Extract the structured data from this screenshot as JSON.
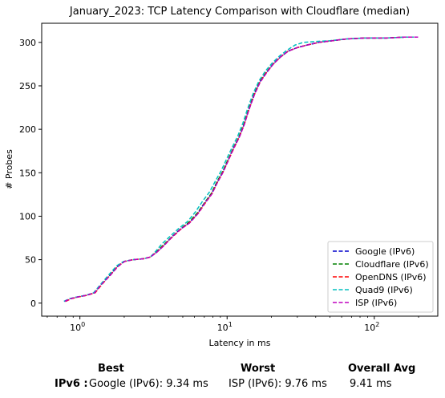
{
  "chart_data": {
    "type": "line",
    "title": "January_2023: TCP Latency Comparison with Cloudflare (median)",
    "xlabel": "Latency in ms",
    "ylabel": "# Probes",
    "xscale": "log",
    "xlim": [
      0.55,
      270
    ],
    "ylim": [
      -15,
      322
    ],
    "xticks": [
      1,
      10,
      100
    ],
    "xtick_labels": [
      "10^0",
      "10^1",
      "10^2"
    ],
    "yticks": [
      0,
      50,
      100,
      150,
      200,
      250,
      300
    ],
    "grid": false,
    "legend_position": "lower-right",
    "series": [
      {
        "name": "Google (IPv6)",
        "color": "#0000cc",
        "dash": "dashed",
        "points": [
          [
            0.78,
            2
          ],
          [
            0.85,
            5
          ],
          [
            0.95,
            7
          ],
          [
            1.1,
            9
          ],
          [
            1.25,
            12
          ],
          [
            1.4,
            22
          ],
          [
            1.6,
            32
          ],
          [
            1.8,
            42
          ],
          [
            2.0,
            48
          ],
          [
            2.3,
            50
          ],
          [
            2.7,
            51
          ],
          [
            3.0,
            53
          ],
          [
            3.3,
            58
          ],
          [
            3.7,
            66
          ],
          [
            4.2,
            76
          ],
          [
            4.8,
            85
          ],
          [
            5.5,
            92
          ],
          [
            6.3,
            103
          ],
          [
            7.0,
            115
          ],
          [
            7.8,
            125
          ],
          [
            8.5,
            138
          ],
          [
            9.3,
            150
          ],
          [
            10.2,
            165
          ],
          [
            11.0,
            178
          ],
          [
            12.0,
            190
          ],
          [
            13.0,
            205
          ],
          [
            14.0,
            222
          ],
          [
            15.3,
            240
          ],
          [
            16.7,
            255
          ],
          [
            18.5,
            265
          ],
          [
            20.5,
            275
          ],
          [
            23.0,
            283
          ],
          [
            26.0,
            290
          ],
          [
            30.0,
            294
          ],
          [
            35.0,
            297
          ],
          [
            42.0,
            300
          ],
          [
            52.0,
            302
          ],
          [
            65.0,
            304
          ],
          [
            85.0,
            305
          ],
          [
            120.0,
            305
          ],
          [
            160.0,
            306
          ],
          [
            185.0,
            306
          ]
        ]
      },
      {
        "name": "Cloudflare (IPv6)",
        "color": "#008000",
        "dash": "dashed",
        "points": [
          [
            0.79,
            2
          ],
          [
            0.86,
            5
          ],
          [
            0.96,
            7
          ],
          [
            1.1,
            9
          ],
          [
            1.26,
            12
          ],
          [
            1.41,
            22
          ],
          [
            1.62,
            33
          ],
          [
            1.82,
            43
          ],
          [
            2.0,
            48
          ],
          [
            2.3,
            50
          ],
          [
            2.7,
            51
          ],
          [
            3.0,
            53
          ],
          [
            3.3,
            59
          ],
          [
            3.7,
            67
          ],
          [
            4.2,
            76
          ],
          [
            4.8,
            85
          ],
          [
            5.5,
            93
          ],
          [
            6.3,
            104
          ],
          [
            7.0,
            115
          ],
          [
            7.8,
            126
          ],
          [
            8.5,
            139
          ],
          [
            9.3,
            151
          ],
          [
            10.2,
            166
          ],
          [
            11.0,
            178
          ],
          [
            12.0,
            191
          ],
          [
            13.0,
            206
          ],
          [
            14.0,
            223
          ],
          [
            15.3,
            241
          ],
          [
            16.7,
            255
          ],
          [
            18.5,
            266
          ],
          [
            20.5,
            275
          ],
          [
            23.0,
            283
          ],
          [
            26.0,
            290
          ],
          [
            30.0,
            294
          ],
          [
            35.0,
            297
          ],
          [
            42.0,
            300
          ],
          [
            52.0,
            302
          ],
          [
            65.0,
            304
          ],
          [
            85.0,
            305
          ],
          [
            120.0,
            305
          ],
          [
            160.0,
            306
          ],
          [
            185.0,
            306
          ]
        ]
      },
      {
        "name": "OpenDNS (IPv6)",
        "color": "#ff0000",
        "dash": "dashed",
        "points": [
          [
            0.8,
            2
          ],
          [
            0.87,
            5
          ],
          [
            0.97,
            7
          ],
          [
            1.12,
            9
          ],
          [
            1.27,
            12
          ],
          [
            1.42,
            22
          ],
          [
            1.62,
            33
          ],
          [
            1.82,
            43
          ],
          [
            2.02,
            48
          ],
          [
            2.3,
            50
          ],
          [
            2.7,
            51
          ],
          [
            3.0,
            53
          ],
          [
            3.35,
            59
          ],
          [
            3.75,
            67
          ],
          [
            4.25,
            76
          ],
          [
            4.85,
            85
          ],
          [
            5.6,
            93
          ],
          [
            6.4,
            104
          ],
          [
            7.1,
            115
          ],
          [
            7.9,
            126
          ],
          [
            8.6,
            139
          ],
          [
            9.4,
            151
          ],
          [
            10.3,
            166
          ],
          [
            11.1,
            178
          ],
          [
            12.1,
            191
          ],
          [
            13.1,
            206
          ],
          [
            14.1,
            223
          ],
          [
            15.4,
            241
          ],
          [
            16.8,
            255
          ],
          [
            18.6,
            266
          ],
          [
            20.6,
            275
          ],
          [
            23.0,
            283
          ],
          [
            26.0,
            290
          ],
          [
            30.0,
            294
          ],
          [
            35.0,
            297
          ],
          [
            42.0,
            300
          ],
          [
            52.0,
            302
          ],
          [
            65.0,
            304
          ],
          [
            85.0,
            305
          ],
          [
            120.0,
            305
          ],
          [
            160.0,
            306
          ],
          [
            185.0,
            306
          ]
        ]
      },
      {
        "name": "Quad9 (IPv6)",
        "color": "#00bfbf",
        "dash": "dashed",
        "points": [
          [
            0.78,
            2
          ],
          [
            0.85,
            5
          ],
          [
            0.95,
            7
          ],
          [
            1.1,
            9
          ],
          [
            1.24,
            12
          ],
          [
            1.39,
            22
          ],
          [
            1.58,
            33
          ],
          [
            1.78,
            43
          ],
          [
            1.98,
            48
          ],
          [
            2.3,
            50
          ],
          [
            2.7,
            51
          ],
          [
            3.0,
            53
          ],
          [
            3.25,
            59
          ],
          [
            3.6,
            68
          ],
          [
            4.1,
            77
          ],
          [
            4.7,
            86
          ],
          [
            5.4,
            94
          ],
          [
            6.1,
            105
          ],
          [
            6.8,
            117
          ],
          [
            7.6,
            128
          ],
          [
            8.3,
            140
          ],
          [
            9.1,
            152
          ],
          [
            10.0,
            167
          ],
          [
            10.8,
            179
          ],
          [
            11.8,
            192
          ],
          [
            12.8,
            207
          ],
          [
            13.8,
            224
          ],
          [
            15.1,
            242
          ],
          [
            16.5,
            256
          ],
          [
            18.2,
            267
          ],
          [
            20.2,
            276
          ],
          [
            22.6,
            284
          ],
          [
            25.5,
            291
          ],
          [
            29.0,
            297
          ],
          [
            33.0,
            300
          ],
          [
            40.0,
            301
          ],
          [
            50.0,
            302
          ],
          [
            65.0,
            304
          ],
          [
            85.0,
            305
          ],
          [
            120.0,
            305
          ],
          [
            160.0,
            306
          ],
          [
            185.0,
            306
          ]
        ]
      },
      {
        "name": "ISP (IPv6)",
        "color": "#bf00bf",
        "dash": "dashed",
        "points": [
          [
            0.79,
            2
          ],
          [
            0.86,
            5
          ],
          [
            0.96,
            7
          ],
          [
            1.11,
            9
          ],
          [
            1.26,
            12
          ],
          [
            1.41,
            22
          ],
          [
            1.61,
            32
          ],
          [
            1.81,
            42
          ],
          [
            2.01,
            48
          ],
          [
            2.3,
            50
          ],
          [
            2.7,
            51
          ],
          [
            3.0,
            53
          ],
          [
            3.3,
            58
          ],
          [
            3.72,
            66
          ],
          [
            4.22,
            76
          ],
          [
            4.82,
            85
          ],
          [
            5.55,
            92
          ],
          [
            6.35,
            103
          ],
          [
            7.05,
            115
          ],
          [
            7.85,
            125
          ],
          [
            8.55,
            138
          ],
          [
            9.35,
            150
          ],
          [
            10.25,
            165
          ],
          [
            11.05,
            178
          ],
          [
            12.05,
            190
          ],
          [
            13.05,
            205
          ],
          [
            14.05,
            222
          ],
          [
            15.35,
            240
          ],
          [
            16.75,
            254
          ],
          [
            18.55,
            265
          ],
          [
            20.55,
            275
          ],
          [
            23.0,
            283
          ],
          [
            26.0,
            290
          ],
          [
            30.0,
            294
          ],
          [
            35.0,
            297
          ],
          [
            42.0,
            300
          ],
          [
            52.0,
            302
          ],
          [
            65.0,
            304
          ],
          [
            85.0,
            305
          ],
          [
            120.0,
            305
          ],
          [
            160.0,
            306
          ],
          [
            200.0,
            306
          ]
        ]
      }
    ]
  },
  "summary": {
    "best_header": "Best",
    "worst_header": "Worst",
    "avg_header": "Overall Avg",
    "row_label": "IPv6 :",
    "best_value": "Google (IPv6): 9.34 ms",
    "worst_value": "ISP (IPv6): 9.76 ms",
    "avg_value": "9.41 ms"
  }
}
